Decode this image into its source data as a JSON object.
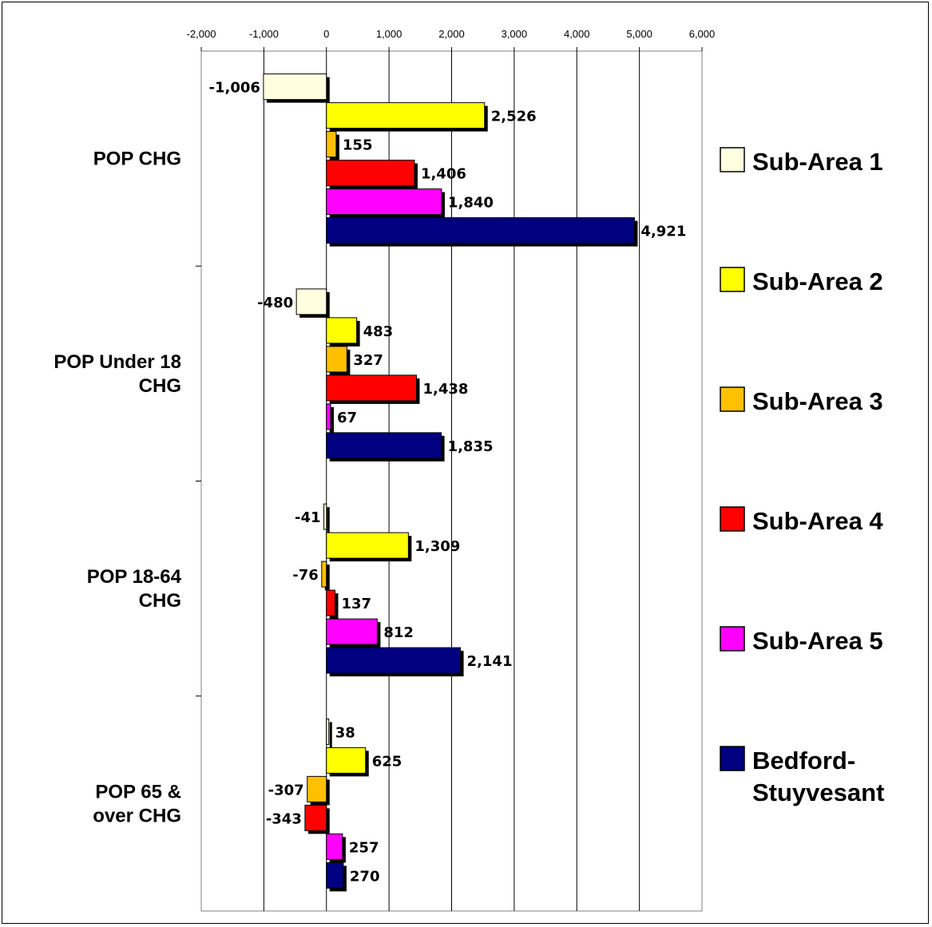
{
  "chart_data": {
    "type": "bar",
    "orientation": "horizontal",
    "categories": [
      "POP CHG",
      "POP Under 18\nCHG",
      "POP 18-64\nCHG",
      "POP 65 &\nover CHG"
    ],
    "series": [
      {
        "name": "Sub-Area 1",
        "color": "#FFFFE0",
        "values": [
          -1006,
          -480,
          -41,
          38
        ]
      },
      {
        "name": "Sub-Area 2",
        "color": "#FFFF00",
        "values": [
          2526,
          483,
          1309,
          625
        ]
      },
      {
        "name": "Sub-Area 3",
        "color": "#FFC000",
        "values": [
          155,
          327,
          -76,
          -307
        ]
      },
      {
        "name": "Sub-Area 4",
        "color": "#FF0000",
        "values": [
          1406,
          1438,
          137,
          -343
        ]
      },
      {
        "name": "Sub-Area 5",
        "color": "#FF00FF",
        "values": [
          1840,
          67,
          812,
          257
        ]
      },
      {
        "name": "Bedford-\nStuyvesant",
        "color": "#000080",
        "values": [
          4921,
          1835,
          2141,
          270
        ]
      }
    ],
    "value_labels": [
      [
        "-1,006",
        "-480",
        "-41",
        "38"
      ],
      [
        "2,526",
        "483",
        "1,309",
        "625"
      ],
      [
        "155",
        "327",
        "-76",
        "-307"
      ],
      [
        "1,406",
        "1,438",
        "137",
        "-343"
      ],
      [
        "1,840",
        "67",
        "812",
        "257"
      ],
      [
        "4,921",
        "1,835",
        "2,141",
        "270"
      ]
    ],
    "xlim": [
      -2000,
      6000
    ],
    "xticks": [
      -2000,
      -1000,
      0,
      1000,
      2000,
      3000,
      4000,
      5000,
      6000
    ],
    "xtick_labels": [
      "-2,000",
      "-1,000",
      "0",
      "1,000",
      "2,000",
      "3,000",
      "4,000",
      "5,000",
      "6,000"
    ],
    "x_axis_position": "top",
    "grid": true,
    "legend_position": "right",
    "title": "",
    "xlabel": "",
    "ylabel": ""
  }
}
